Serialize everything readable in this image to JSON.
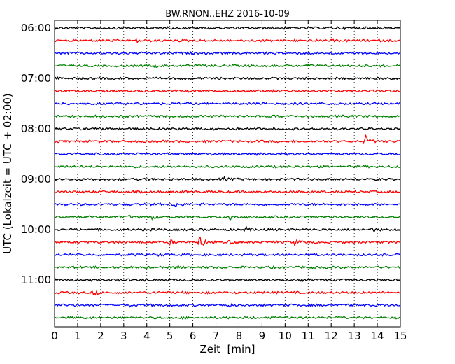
{
  "chart_data": {
    "type": "line",
    "subtype": "seismogram-helicorder",
    "title": "BW.RNON..EHZ 2016-10-09",
    "xlabel": "Zeit  [min]",
    "ylabel": "UTC (Lokalzeit = UTC + 02:00)",
    "xlim": [
      0,
      15
    ],
    "x_ticks": [
      "0",
      "1",
      "2",
      "3",
      "4",
      "5",
      "6",
      "7",
      "8",
      "9",
      "10",
      "11",
      "12",
      "13",
      "14",
      "15"
    ],
    "y_ticks": [
      "06:00",
      "07:00",
      "08:00",
      "09:00",
      "10:00",
      "11:00"
    ],
    "grid": "vertical dotted",
    "trace_colors": [
      "#000000",
      "#ff0000",
      "#0000ff",
      "#008000"
    ],
    "series": [
      {
        "start": "06:00",
        "events": [
          {
            "x": 12.3,
            "amp": 0.6
          }
        ]
      },
      {
        "start": "06:15",
        "events": [
          {
            "x": 3.6,
            "amp": 1.2
          }
        ]
      },
      {
        "start": "06:30",
        "events": []
      },
      {
        "start": "06:45",
        "events": [
          {
            "x": 4.4,
            "amp": 0.7
          },
          {
            "x": 11.0,
            "amp": 0.6
          }
        ]
      },
      {
        "start": "07:00",
        "events": []
      },
      {
        "start": "07:15",
        "events": []
      },
      {
        "start": "07:30",
        "events": []
      },
      {
        "start": "07:45",
        "events": [
          {
            "x": 9.6,
            "amp": 0.7
          }
        ]
      },
      {
        "start": "08:00",
        "events": []
      },
      {
        "start": "08:15",
        "events": [
          {
            "x": 13.5,
            "amp": 4.5
          }
        ]
      },
      {
        "start": "08:30",
        "events": []
      },
      {
        "start": "08:45",
        "events": []
      },
      {
        "start": "09:00",
        "events": [
          {
            "x": 7.3,
            "amp": 1.6
          }
        ]
      },
      {
        "start": "09:15",
        "events": []
      },
      {
        "start": "09:30",
        "events": [
          {
            "x": 5.2,
            "amp": 2.2
          }
        ]
      },
      {
        "start": "09:45",
        "events": [
          {
            "x": 3.2,
            "amp": 0.9
          },
          {
            "x": 4.2,
            "amp": 1.6
          },
          {
            "x": 7.6,
            "amp": 3.0
          }
        ]
      },
      {
        "start": "10:00",
        "events": [
          {
            "x": 8.3,
            "amp": 2.0
          },
          {
            "x": 13.8,
            "amp": 1.6
          }
        ]
      },
      {
        "start": "10:15",
        "events": [
          {
            "x": 5.0,
            "amp": 1.8
          },
          {
            "x": 6.3,
            "amp": 5.5
          },
          {
            "x": 7.6,
            "amp": 1.2
          },
          {
            "x": 10.4,
            "amp": 2.0
          },
          {
            "x": 10.6,
            "amp": 1.4
          }
        ]
      },
      {
        "start": "10:30",
        "events": [
          {
            "x": 4.5,
            "amp": 0.7
          }
        ]
      },
      {
        "start": "10:45",
        "events": [
          {
            "x": 5.3,
            "amp": 1.4
          }
        ]
      },
      {
        "start": "11:00",
        "events": []
      },
      {
        "start": "11:15",
        "events": [
          {
            "x": 1.7,
            "amp": 1.6
          },
          {
            "x": 4.4,
            "amp": 1.0
          }
        ]
      },
      {
        "start": "11:30",
        "events": [
          {
            "x": 3.3,
            "amp": 1.0
          },
          {
            "x": 7.5,
            "amp": 1.8
          }
        ]
      },
      {
        "start": "11:45",
        "events": []
      }
    ]
  }
}
